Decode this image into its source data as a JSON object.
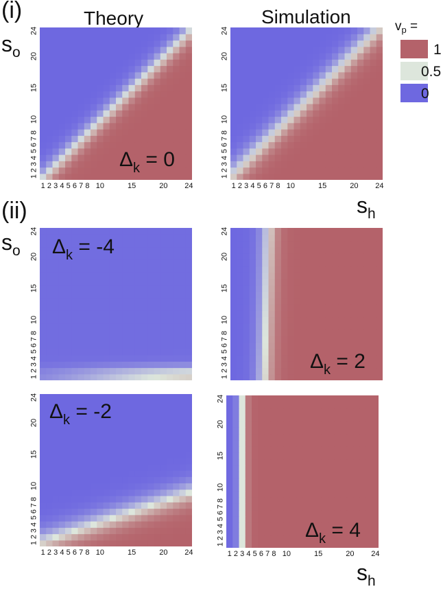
{
  "labels": {
    "panel_i": "(i)",
    "panel_ii": "(ii)",
    "theory": "Theory",
    "simulation": "Simulation",
    "so_base": "s",
    "so_sub": "o",
    "sh_base": "s",
    "sh_sub": "h"
  },
  "legend": {
    "title_base": "v",
    "title_sub": "p",
    "title_suffix": " =",
    "items": [
      {
        "label": "1",
        "color": "#b4626a"
      },
      {
        "label": "0.5",
        "color": "#dde6dc"
      },
      {
        "label": "0",
        "color": "#6e68e0"
      }
    ]
  },
  "ticks": {
    "labels": [
      "1",
      "2",
      "3",
      "4",
      "5",
      "6",
      "7",
      "8",
      "10",
      "15",
      "20",
      "24"
    ],
    "values": [
      1,
      2,
      3,
      4,
      5,
      6,
      7,
      8,
      10,
      15,
      20,
      24
    ]
  },
  "colors": {
    "low": "#6e68e0",
    "mid": "#dde6dc",
    "high": "#b4626a"
  },
  "chart_data": [
    {
      "type": "heatmap",
      "panel": "(i)",
      "column": "Theory",
      "delta_k": "0",
      "xlabel": "sh",
      "ylabel": "so",
      "grid_size": 24,
      "value_range": [
        0,
        1
      ]
    },
    {
      "type": "heatmap",
      "panel": "(i)",
      "column": "Simulation",
      "delta_k": "0",
      "xlabel": "sh",
      "ylabel": "so",
      "grid_size": 24,
      "value_range": [
        0,
        1
      ]
    },
    {
      "type": "heatmap",
      "panel": "(ii)",
      "column": "Theory",
      "delta_k": "-4",
      "xlabel": "sh",
      "ylabel": "so",
      "grid_size": 24,
      "value_range": [
        0,
        1
      ]
    },
    {
      "type": "heatmap",
      "panel": "(ii)",
      "column": "Simulation",
      "delta_k": "2",
      "xlabel": "sh",
      "ylabel": "so",
      "grid_size": 24,
      "value_range": [
        0,
        1
      ]
    },
    {
      "type": "heatmap",
      "panel": "(ii)",
      "column": "Theory",
      "delta_k": "-2",
      "xlabel": "sh",
      "ylabel": "so",
      "grid_size": 24,
      "value_range": [
        0,
        1
      ]
    },
    {
      "type": "heatmap",
      "panel": "(ii)",
      "column": "Simulation",
      "delta_k": "4",
      "xlabel": "sh",
      "ylabel": "so",
      "grid_size": 24,
      "value_range": [
        0,
        1
      ]
    }
  ],
  "deltas": [
    {
      "base": "Δ",
      "sub": "k",
      "value": " = 0"
    },
    {
      "base": "Δ",
      "sub": "k",
      "value": " = -4"
    },
    {
      "base": "Δ",
      "sub": "k",
      "value": " = 2"
    },
    {
      "base": "Δ",
      "sub": "k",
      "value": " = -2"
    },
    {
      "base": "Δ",
      "sub": "k",
      "value": " = 4"
    }
  ]
}
